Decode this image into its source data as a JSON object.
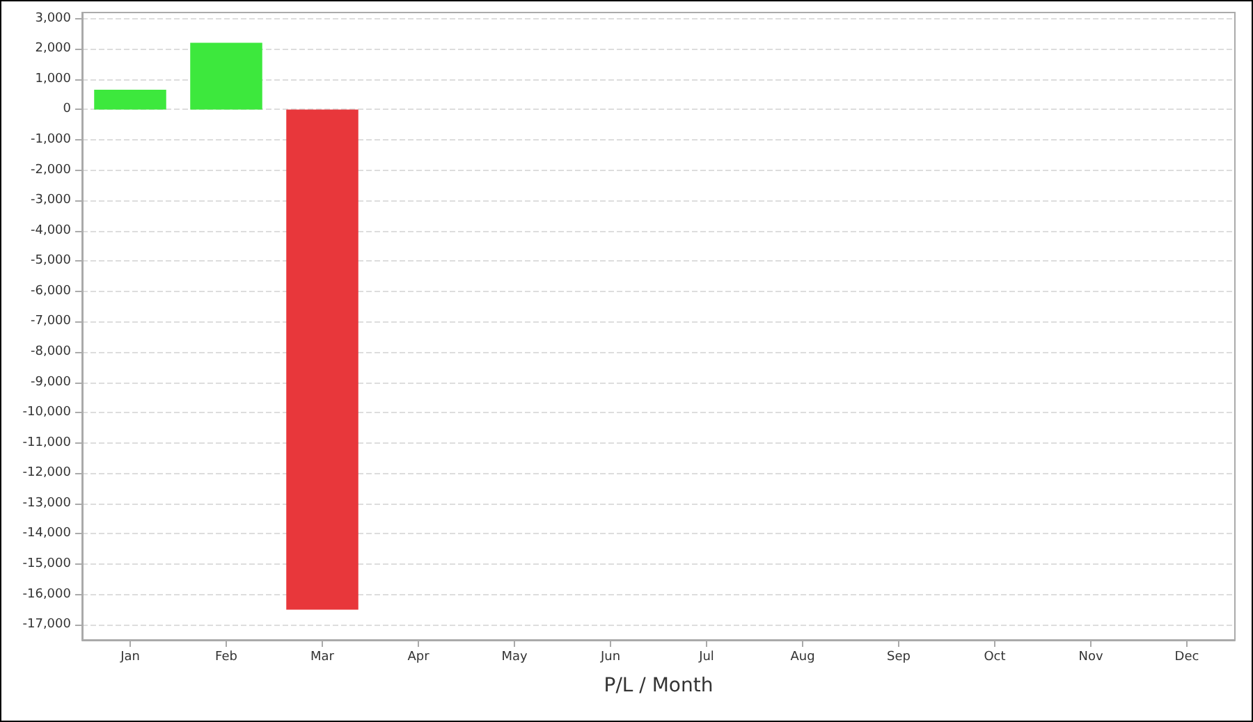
{
  "chart_data": {
    "type": "bar",
    "xlabel": "P/L / Month",
    "categories": [
      "Jan",
      "Feb",
      "Mar",
      "Apr",
      "May",
      "Jun",
      "Jul",
      "Aug",
      "Sep",
      "Oct",
      "Nov",
      "Dec"
    ],
    "values": [
      650,
      2200,
      -16500,
      null,
      null,
      null,
      null,
      null,
      null,
      null,
      null,
      null
    ],
    "colors": [
      "#3de83d",
      "#3de83d",
      "#e8373b",
      null,
      null,
      null,
      null,
      null,
      null,
      null,
      null,
      null
    ],
    "ylim": [
      -17500,
      3200
    ],
    "yticks": [
      {
        "value": -17000,
        "label": "-17,000"
      },
      {
        "value": -16000,
        "label": "-16,000"
      },
      {
        "value": -15000,
        "label": "-15,000"
      },
      {
        "value": -14000,
        "label": "-14,000"
      },
      {
        "value": -13000,
        "label": "-13,000"
      },
      {
        "value": -12000,
        "label": "-12,000"
      },
      {
        "value": -11000,
        "label": "-11,000"
      },
      {
        "value": -10000,
        "label": "-10,000"
      },
      {
        "value": -9000,
        "label": "-9,000"
      },
      {
        "value": -8000,
        "label": "-8,000"
      },
      {
        "value": -7000,
        "label": "-7,000"
      },
      {
        "value": -6000,
        "label": "-6,000"
      },
      {
        "value": -5000,
        "label": "-5,000"
      },
      {
        "value": -4000,
        "label": "-4,000"
      },
      {
        "value": -3000,
        "label": "-3,000"
      },
      {
        "value": -2000,
        "label": "-2,000"
      },
      {
        "value": -1000,
        "label": "-1,000"
      },
      0,
      {
        "value": 1000,
        "label": "1,000"
      },
      {
        "value": 2000,
        "label": "2,000"
      },
      {
        "value": 3000,
        "label": "3,000"
      }
    ],
    "grid": "y"
  }
}
